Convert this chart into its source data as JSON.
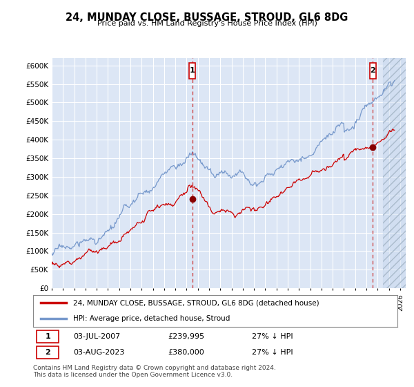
{
  "title": "24, MUNDAY CLOSE, BUSSAGE, STROUD, GL6 8DG",
  "subtitle": "Price paid vs. HM Land Registry's House Price Index (HPI)",
  "ylabel_ticks": [
    "£0",
    "£50K",
    "£100K",
    "£150K",
    "£200K",
    "£250K",
    "£300K",
    "£350K",
    "£400K",
    "£450K",
    "£500K",
    "£550K",
    "£600K"
  ],
  "ytick_values": [
    0,
    50000,
    100000,
    150000,
    200000,
    250000,
    300000,
    350000,
    400000,
    450000,
    500000,
    550000,
    600000
  ],
  "marker1": {
    "date_x": 2007.5,
    "price": 239995,
    "label": "1",
    "date_str": "03-JUL-2007",
    "hpi_diff": "27% ↓ HPI"
  },
  "marker2": {
    "date_x": 2023.58,
    "price": 380000,
    "label": "2",
    "date_str": "03-AUG-2023",
    "hpi_diff": "27% ↓ HPI"
  },
  "hpi_line_color": "#7799cc",
  "price_line_color": "#cc0000",
  "background_color": "#dce6f5",
  "grid_color": "#ffffff",
  "legend_label_red": "24, MUNDAY CLOSE, BUSSAGE, STROUD, GL6 8DG (detached house)",
  "legend_label_blue": "HPI: Average price, detached house, Stroud",
  "footnote": "Contains HM Land Registry data © Crown copyright and database right 2024.\nThis data is licensed under the Open Government Licence v3.0.",
  "hatch_start": 2024.5,
  "xlim_start": 1995,
  "xlim_end": 2026.5,
  "ylim_max": 620000
}
